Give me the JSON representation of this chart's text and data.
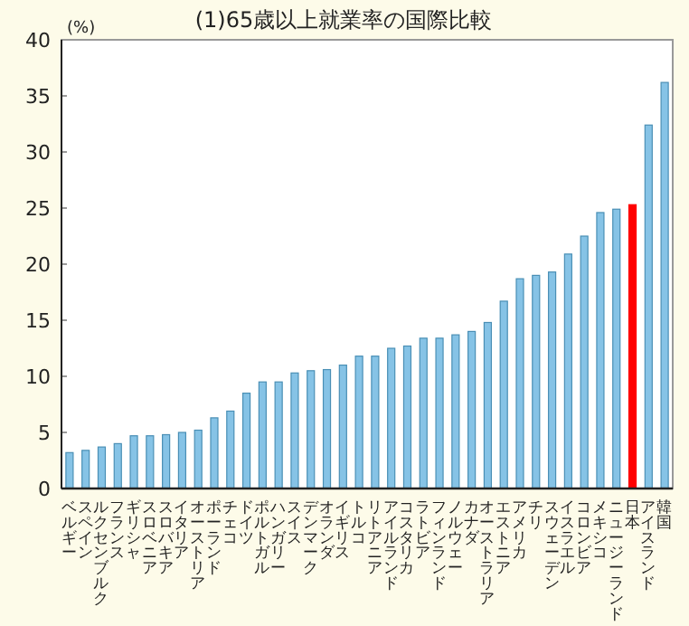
{
  "chart_data": {
    "type": "bar",
    "title": "(1)65歳以上就業率の国際比較",
    "ylabel": "(%)",
    "categories": [
      "ベルギー",
      "スペイン",
      "ルクセンブルク",
      "フランス",
      "ギリシャ",
      "スロベニア",
      "スロバキア",
      "イタリア",
      "オーストリア",
      "ポーランド",
      "チェコ",
      "ドイツ",
      "ポルトガル",
      "ハンガリー",
      "スイス",
      "デンマーク",
      "オランダ",
      "イギリス",
      "トルコ",
      "リトアニア",
      "アイルランド",
      "コスタリカ",
      "ラトビア",
      "フィンランド",
      "ノルウェー",
      "カナダ",
      "オーストラリア",
      "エストニア",
      "アメリカ",
      "チリ",
      "スウェーデン",
      "イスラエル",
      "コロンビア",
      "メキシコ",
      "ニュージーランド",
      "日本",
      "アイスランド",
      "韓国"
    ],
    "values": [
      3.2,
      3.4,
      3.7,
      4.0,
      4.7,
      4.7,
      4.8,
      5.0,
      5.2,
      6.3,
      6.9,
      8.5,
      9.5,
      9.5,
      10.3,
      10.5,
      10.6,
      11.0,
      11.8,
      11.8,
      12.5,
      12.7,
      13.4,
      13.4,
      13.7,
      14.0,
      14.8,
      16.7,
      18.7,
      19.0,
      19.3,
      20.9,
      22.5,
      24.6,
      24.9,
      25.3,
      32.4,
      36.2
    ],
    "colors": [
      "#86c3e6",
      "#86c3e6",
      "#86c3e6",
      "#86c3e6",
      "#86c3e6",
      "#86c3e6",
      "#86c3e6",
      "#86c3e6",
      "#86c3e6",
      "#86c3e6",
      "#86c3e6",
      "#86c3e6",
      "#86c3e6",
      "#86c3e6",
      "#86c3e6",
      "#86c3e6",
      "#86c3e6",
      "#86c3e6",
      "#86c3e6",
      "#86c3e6",
      "#86c3e6",
      "#86c3e6",
      "#86c3e6",
      "#86c3e6",
      "#86c3e6",
      "#86c3e6",
      "#86c3e6",
      "#86c3e6",
      "#86c3e6",
      "#86c3e6",
      "#86c3e6",
      "#86c3e6",
      "#86c3e6",
      "#86c3e6",
      "#86c3e6",
      "#ff0000",
      "#86c3e6",
      "#86c3e6"
    ],
    "ylim": [
      0,
      40
    ],
    "yticks": [
      0,
      5,
      10,
      15,
      20,
      25,
      30,
      35,
      40
    ],
    "grid": false
  }
}
